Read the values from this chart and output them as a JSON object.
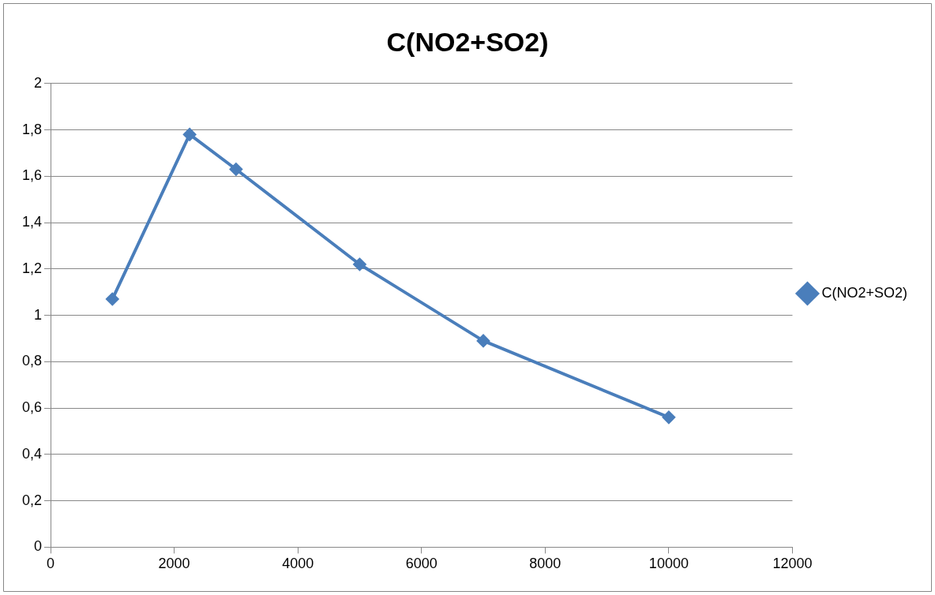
{
  "chart_data": {
    "type": "line",
    "title": "C(NO2+SO2)",
    "x": [
      1000,
      2250,
      3000,
      5000,
      7000,
      10000
    ],
    "series": [
      {
        "name": "C(NO2+SO2)",
        "color": "#4a7ebb",
        "values": [
          1.07,
          1.78,
          1.63,
          1.22,
          0.89,
          0.56
        ]
      }
    ],
    "xlim": [
      0,
      12000
    ],
    "xticks": [
      0,
      2000,
      4000,
      6000,
      8000,
      10000,
      12000
    ],
    "ylim": [
      0,
      2
    ],
    "yticks": [
      0,
      {
        "value": 0.2,
        "label": "0,2"
      },
      {
        "value": 0.4,
        "label": "0,4"
      },
      {
        "value": 0.6,
        "label": "0,6"
      },
      {
        "value": 0.8,
        "label": "0,8"
      },
      1,
      {
        "value": 1.2,
        "label": "1,2"
      },
      {
        "value": 1.4,
        "label": "1,4"
      },
      {
        "value": 1.6,
        "label": "1,6"
      },
      {
        "value": 1.8,
        "label": "1,8"
      },
      2
    ],
    "grid": "y",
    "legend": "right",
    "marker": "diamond",
    "line_style": "solid"
  }
}
